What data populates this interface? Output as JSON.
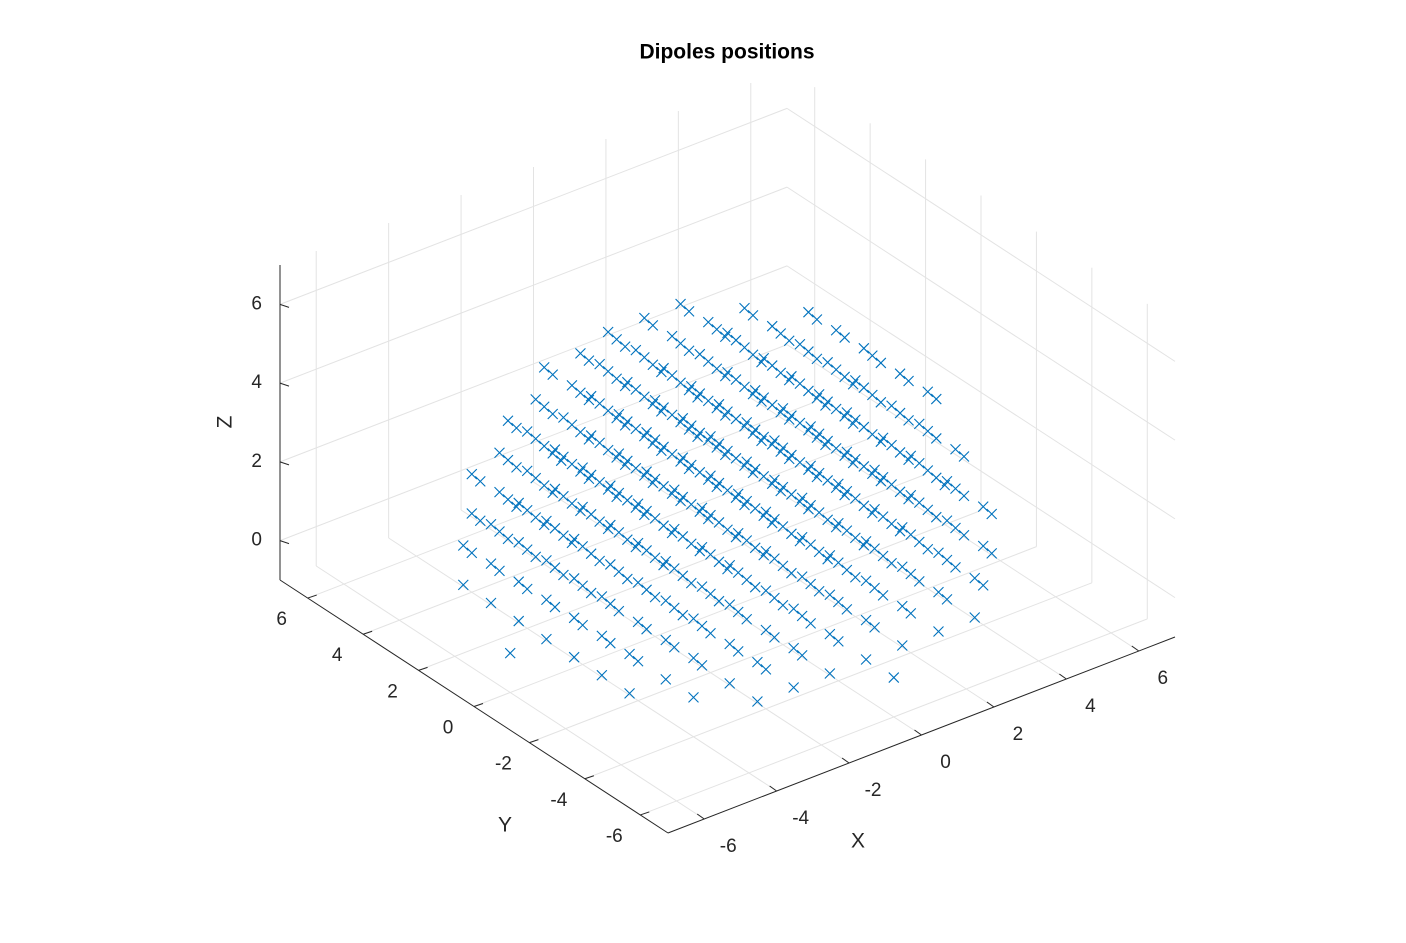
{
  "chart_data": {
    "type": "scatter3d",
    "title": "Dipoles positions",
    "xlabel": "X",
    "ylabel": "Y",
    "zlabel": "Z",
    "xlim": [
      -7,
      7
    ],
    "ylim": [
      -7,
      7
    ],
    "zlim": [
      -1,
      7
    ],
    "xticks": [
      -6,
      -4,
      -2,
      0,
      2,
      4,
      6
    ],
    "yticks": [
      -6,
      -4,
      -2,
      0,
      2,
      4,
      6
    ],
    "zticks": [
      0,
      2,
      4,
      6
    ],
    "grid": true,
    "color": "#0072bd",
    "marker": "x",
    "rows": [
      {
        "z": 0,
        "y": -6,
        "x": [
          0
        ]
      },
      {
        "z": 0,
        "y": -5,
        "x": [
          -3,
          -2,
          -1,
          0,
          1,
          2,
          3
        ]
      },
      {
        "z": 0,
        "y": -4,
        "x": [
          -4,
          -3,
          -2,
          -1,
          0,
          1,
          2,
          3,
          4
        ]
      },
      {
        "z": 0,
        "y": -3,
        "x": [
          -5,
          -4,
          -3,
          -2,
          -1,
          0,
          1,
          2,
          3,
          4,
          5
        ]
      },
      {
        "z": 0,
        "y": -2,
        "x": [
          -5,
          -4,
          -3,
          -2,
          -1,
          0,
          1,
          2,
          3,
          4,
          5
        ]
      },
      {
        "z": 0,
        "y": -1,
        "x": [
          -5,
          -4,
          -3,
          -2,
          -1,
          0,
          1,
          2,
          3,
          4,
          5
        ]
      },
      {
        "z": 0,
        "y": 0,
        "x": [
          -6,
          -5,
          -4,
          -3,
          -2,
          -1,
          0,
          1,
          2,
          3,
          4,
          5,
          6
        ]
      },
      {
        "z": 0,
        "y": 1,
        "x": [
          -5,
          -4,
          -3,
          -2,
          -1,
          0,
          1,
          2,
          3,
          4,
          5
        ]
      },
      {
        "z": 0,
        "y": 2,
        "x": [
          -5,
          -4,
          -3,
          -2,
          -1,
          0,
          1,
          2,
          3,
          4,
          5
        ]
      },
      {
        "z": 0,
        "y": 3,
        "x": [
          -5,
          -4,
          -3,
          -2,
          -1,
          0,
          1,
          2,
          3,
          4,
          5
        ]
      },
      {
        "z": 0,
        "y": 4,
        "x": [
          -4,
          -3,
          -2,
          -1,
          0,
          1,
          2,
          3,
          4
        ]
      },
      {
        "z": 0,
        "y": 5,
        "x": [
          -3,
          -2,
          -1,
          0,
          1,
          2,
          3
        ]
      },
      {
        "z": 0,
        "y": 6,
        "x": [
          0
        ]
      },
      {
        "z": 1,
        "y": -5,
        "x": [
          -3,
          -2,
          -1,
          0,
          1,
          2,
          3
        ]
      },
      {
        "z": 1,
        "y": -4,
        "x": [
          -4,
          -3,
          -2,
          -1,
          0,
          1,
          2,
          3,
          4
        ]
      },
      {
        "z": 1,
        "y": -3,
        "x": [
          -5,
          -4,
          -3,
          -2,
          -1,
          0,
          1,
          2,
          3,
          4,
          5
        ]
      },
      {
        "z": 1,
        "y": -2,
        "x": [
          -5,
          -4,
          -3,
          -2,
          -1,
          0,
          1,
          2,
          3,
          4,
          5
        ]
      },
      {
        "z": 1,
        "y": -1,
        "x": [
          -5,
          -4,
          -3,
          -2,
          -1,
          0,
          1,
          2,
          3,
          4,
          5
        ]
      },
      {
        "z": 1,
        "y": 0,
        "x": [
          -5,
          -4,
          -3,
          -2,
          -1,
          0,
          1,
          2,
          3,
          4,
          5
        ]
      },
      {
        "z": 1,
        "y": 1,
        "x": [
          -5,
          -4,
          -3,
          -2,
          -1,
          0,
          1,
          2,
          3,
          4,
          5
        ]
      },
      {
        "z": 1,
        "y": 2,
        "x": [
          -5,
          -4,
          -3,
          -2,
          -1,
          0,
          1,
          2,
          3,
          4,
          5
        ]
      },
      {
        "z": 1,
        "y": 3,
        "x": [
          -5,
          -4,
          -3,
          -2,
          -1,
          0,
          1,
          2,
          3,
          4,
          5
        ]
      },
      {
        "z": 1,
        "y": 4,
        "x": [
          -4,
          -3,
          -2,
          -1,
          0,
          1,
          2,
          3,
          4
        ]
      },
      {
        "z": 1,
        "y": 5,
        "x": [
          -3,
          -2,
          -1,
          0,
          1,
          2,
          3
        ]
      },
      {
        "z": 2,
        "y": -5,
        "x": [
          -2,
          -1,
          0,
          1,
          2
        ]
      },
      {
        "z": 2,
        "y": -4,
        "x": [
          -4,
          -3,
          -2,
          -1,
          0,
          1,
          2,
          3,
          4
        ]
      },
      {
        "z": 2,
        "y": -3,
        "x": [
          -4,
          -3,
          -2,
          -1,
          0,
          1,
          2,
          3,
          4
        ]
      },
      {
        "z": 2,
        "y": -2,
        "x": [
          -5,
          -4,
          -3,
          -2,
          -1,
          0,
          1,
          2,
          3,
          4,
          5
        ]
      },
      {
        "z": 2,
        "y": -1,
        "x": [
          -5,
          -4,
          -3,
          -2,
          -1,
          0,
          1,
          2,
          3,
          4,
          5
        ]
      },
      {
        "z": 2,
        "y": 0,
        "x": [
          -5,
          -4,
          -3,
          -2,
          -1,
          0,
          1,
          2,
          3,
          4,
          5
        ]
      },
      {
        "z": 2,
        "y": 1,
        "x": [
          -5,
          -4,
          -3,
          -2,
          -1,
          0,
          1,
          2,
          3,
          4,
          5
        ]
      },
      {
        "z": 2,
        "y": 2,
        "x": [
          -5,
          -4,
          -3,
          -2,
          -1,
          0,
          1,
          2,
          3,
          4,
          5
        ]
      },
      {
        "z": 2,
        "y": 3,
        "x": [
          -4,
          -3,
          -2,
          -1,
          0,
          1,
          2,
          3,
          4
        ]
      },
      {
        "z": 2,
        "y": 4,
        "x": [
          -4,
          -3,
          -2,
          -1,
          0,
          1,
          2,
          3,
          4
        ]
      },
      {
        "z": 2,
        "y": 5,
        "x": [
          -2,
          -1,
          0,
          1,
          2
        ]
      },
      {
        "z": 3,
        "y": -5,
        "x": [
          -1,
          0,
          1
        ]
      },
      {
        "z": 3,
        "y": -4,
        "x": [
          -3,
          -2,
          -1,
          0,
          1,
          2,
          3
        ]
      },
      {
        "z": 3,
        "y": -3,
        "x": [
          -4,
          -3,
          -2,
          -1,
          0,
          1,
          2,
          3,
          4
        ]
      },
      {
        "z": 3,
        "y": -2,
        "x": [
          -4,
          -3,
          -2,
          -1,
          0,
          1,
          2,
          3,
          4
        ]
      },
      {
        "z": 3,
        "y": -1,
        "x": [
          -5,
          -4,
          -3,
          -2,
          -1,
          0,
          1,
          2,
          3,
          4,
          5
        ]
      },
      {
        "z": 3,
        "y": 0,
        "x": [
          -5,
          -4,
          -3,
          -2,
          -1,
          0,
          1,
          2,
          3,
          4,
          5
        ]
      },
      {
        "z": 3,
        "y": 1,
        "x": [
          -5,
          -4,
          -3,
          -2,
          -1,
          0,
          1,
          2,
          3,
          4,
          5
        ]
      },
      {
        "z": 3,
        "y": 2,
        "x": [
          -4,
          -3,
          -2,
          -1,
          0,
          1,
          2,
          3,
          4
        ]
      },
      {
        "z": 3,
        "y": 3,
        "x": [
          -4,
          -3,
          -2,
          -1,
          0,
          1,
          2,
          3,
          4
        ]
      },
      {
        "z": 3,
        "y": 4,
        "x": [
          -3,
          -2,
          -1,
          0,
          1,
          2,
          3
        ]
      },
      {
        "z": 3,
        "y": 5,
        "x": [
          -1,
          0,
          1
        ]
      },
      {
        "z": 4,
        "y": -4,
        "x": [
          -2,
          -1,
          0,
          1,
          2
        ]
      },
      {
        "z": 4,
        "y": -3,
        "x": [
          -3,
          -2,
          -1,
          0,
          1,
          2,
          3
        ]
      },
      {
        "z": 4,
        "y": -2,
        "x": [
          -4,
          -3,
          -2,
          -1,
          0,
          1,
          2,
          3,
          4
        ]
      },
      {
        "z": 4,
        "y": -1,
        "x": [
          -4,
          -3,
          -2,
          -1,
          0,
          1,
          2,
          3,
          4
        ]
      },
      {
        "z": 4,
        "y": 0,
        "x": [
          -4,
          -3,
          -2,
          -1,
          0,
          1,
          2,
          3,
          4
        ]
      },
      {
        "z": 4,
        "y": 1,
        "x": [
          -4,
          -3,
          -2,
          -1,
          0,
          1,
          2,
          3,
          4
        ]
      },
      {
        "z": 4,
        "y": 2,
        "x": [
          -4,
          -3,
          -2,
          -1,
          0,
          1,
          2,
          3,
          4
        ]
      },
      {
        "z": 4,
        "y": 3,
        "x": [
          -3,
          -2,
          -1,
          0,
          1,
          2,
          3
        ]
      },
      {
        "z": 4,
        "y": 4,
        "x": [
          -2,
          -1,
          0,
          1,
          2
        ]
      },
      {
        "z": 5,
        "y": -3,
        "x": [
          -1,
          0,
          1
        ]
      },
      {
        "z": 5,
        "y": -2,
        "x": [
          -2,
          -1,
          0,
          1,
          2
        ]
      },
      {
        "z": 5,
        "y": -1,
        "x": [
          -3,
          -2,
          -1,
          0,
          1,
          2,
          3
        ]
      },
      {
        "z": 5,
        "y": 0,
        "x": [
          -3,
          -2,
          -1,
          0,
          1,
          2,
          3
        ]
      },
      {
        "z": 5,
        "y": 1,
        "x": [
          -3,
          -2,
          -1,
          0,
          1,
          2,
          3
        ]
      },
      {
        "z": 5,
        "y": 2,
        "x": [
          -2,
          -1,
          0,
          1,
          2
        ]
      },
      {
        "z": 5,
        "y": 3,
        "x": [
          -1,
          0,
          1
        ]
      },
      {
        "z": 6,
        "y": 0,
        "x": [
          0
        ]
      }
    ]
  }
}
